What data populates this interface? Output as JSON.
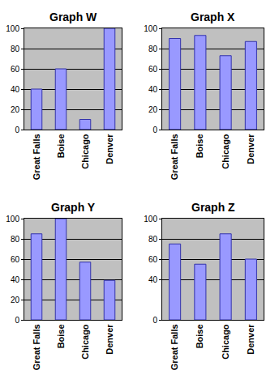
{
  "chart_data": [
    {
      "type": "bar",
      "title": "Graph W",
      "categories": [
        "Great Falls",
        "Boise",
        "Chicago",
        "Denver"
      ],
      "values": [
        40,
        60,
        10,
        100
      ],
      "color": "#9999ff",
      "ylim": [
        0,
        100
      ],
      "yticks": [
        0,
        20,
        40,
        60,
        80,
        100
      ],
      "grid": true
    },
    {
      "type": "bar",
      "title": "Graph X",
      "categories": [
        "Great Falls",
        "Boise",
        "Chicago",
        "Denver"
      ],
      "values": [
        90,
        93,
        73,
        87
      ],
      "color": "#9999ff",
      "ylim": [
        0,
        100
      ],
      "yticks": [
        0,
        20,
        40,
        60,
        80,
        100
      ],
      "grid": true
    },
    {
      "type": "bar",
      "title": "Graph Y",
      "categories": [
        "Great Falls",
        "Boise",
        "Chicago",
        "Denver"
      ],
      "values": [
        85,
        100,
        57,
        39
      ],
      "color": "#9999ff",
      "ylim": [
        0,
        100
      ],
      "yticks": [
        0,
        20,
        40,
        60,
        80,
        100
      ],
      "grid": true
    },
    {
      "type": "bar",
      "title": "Graph Z",
      "categories": [
        "Great Falls",
        "Boise",
        "Chicago",
        "Denver"
      ],
      "values": [
        75,
        55,
        85,
        60
      ],
      "color": "#9999ff",
      "ylim": [
        0,
        100
      ],
      "yticks": [
        0,
        40,
        60,
        80,
        100
      ],
      "grid": true
    }
  ]
}
